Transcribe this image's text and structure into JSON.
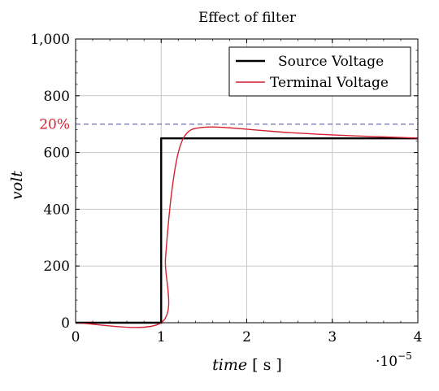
{
  "chart_data": {
    "type": "line",
    "title": "Effect of filter",
    "xlabel": "time",
    "xunit": "[ s ]",
    "ylabel": "volt",
    "x_exponent_label": "·10",
    "x_exponent": "−5",
    "xlim": [
      0,
      4
    ],
    "ylim": [
      0,
      1000
    ],
    "xticks": [
      0,
      1,
      2,
      3,
      4
    ],
    "yticks": [
      0,
      200,
      400,
      600,
      800,
      1000
    ],
    "ytick_labels": [
      "0",
      "200",
      "400",
      "600",
      "800",
      "1,000"
    ],
    "grid": true,
    "legend_position": "top-right",
    "reference_line": {
      "y": 700,
      "label": "20%",
      "color": "#d62030",
      "line_color": "#4a4a9a",
      "style": "dashed"
    },
    "series": [
      {
        "name": "Source Voltage",
        "color": "#000000",
        "x": [
          0,
          1,
          1,
          4
        ],
        "y": [
          0,
          0,
          650,
          650
        ]
      },
      {
        "name": "Terminal Voltage",
        "color": "#d62030",
        "x": [
          0,
          1,
          1.05,
          1.1,
          1.15,
          1.2,
          1.25,
          1.3,
          1.35,
          1.4,
          1.5,
          1.6,
          1.7,
          1.8,
          2.0,
          2.2,
          2.5,
          3.0,
          3.5,
          4.0
        ],
        "y": [
          0,
          0,
          225,
          400,
          520,
          600,
          645,
          668,
          680,
          685,
          689,
          690,
          689,
          687,
          682,
          677,
          670,
          662,
          656,
          651
        ]
      }
    ]
  }
}
